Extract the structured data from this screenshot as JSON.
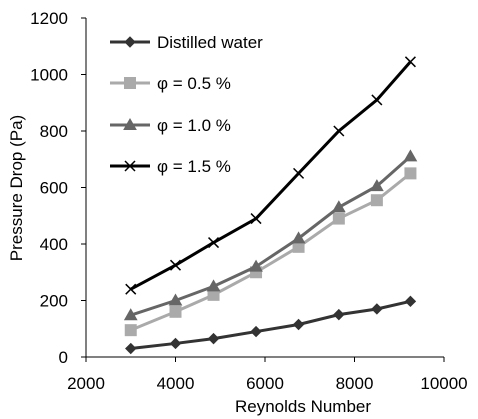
{
  "chart_data": {
    "type": "line",
    "title": "",
    "xlabel": "Reynolds Number",
    "ylabel": "Pressure Drop (Pa)",
    "xlim": [
      2000,
      10000
    ],
    "ylim": [
      0,
      1200
    ],
    "x_ticks": [
      2000,
      4000,
      6000,
      8000,
      10000
    ],
    "y_ticks": [
      0,
      200,
      400,
      600,
      800,
      1000,
      1200
    ],
    "grid": false,
    "legend_position": "top-left",
    "series": [
      {
        "name": "Distilled water",
        "marker": "diamond",
        "color": "#333333",
        "x": [
          3000,
          4000,
          4850,
          5800,
          6750,
          7650,
          8500,
          9250
        ],
        "y": [
          30,
          48,
          65,
          90,
          115,
          150,
          170,
          197
        ]
      },
      {
        "name": "φ = 0.5 %",
        "marker": "square",
        "color": "#aaaaaa",
        "x": [
          3000,
          4000,
          4850,
          5800,
          6750,
          7650,
          8500,
          9250
        ],
        "y": [
          95,
          160,
          220,
          300,
          390,
          490,
          555,
          650
        ]
      },
      {
        "name": "φ = 1.0 %",
        "marker": "triangle",
        "color": "#666666",
        "x": [
          3000,
          4000,
          4850,
          5800,
          6750,
          7650,
          8500,
          9250
        ],
        "y": [
          148,
          200,
          250,
          320,
          420,
          530,
          605,
          710
        ]
      },
      {
        "name": "φ = 1.5 %",
        "marker": "x",
        "color": "#000000",
        "x": [
          3000,
          4000,
          4850,
          5800,
          6750,
          7650,
          8500,
          9250
        ],
        "y": [
          240,
          325,
          405,
          490,
          650,
          800,
          910,
          1045
        ]
      }
    ]
  }
}
